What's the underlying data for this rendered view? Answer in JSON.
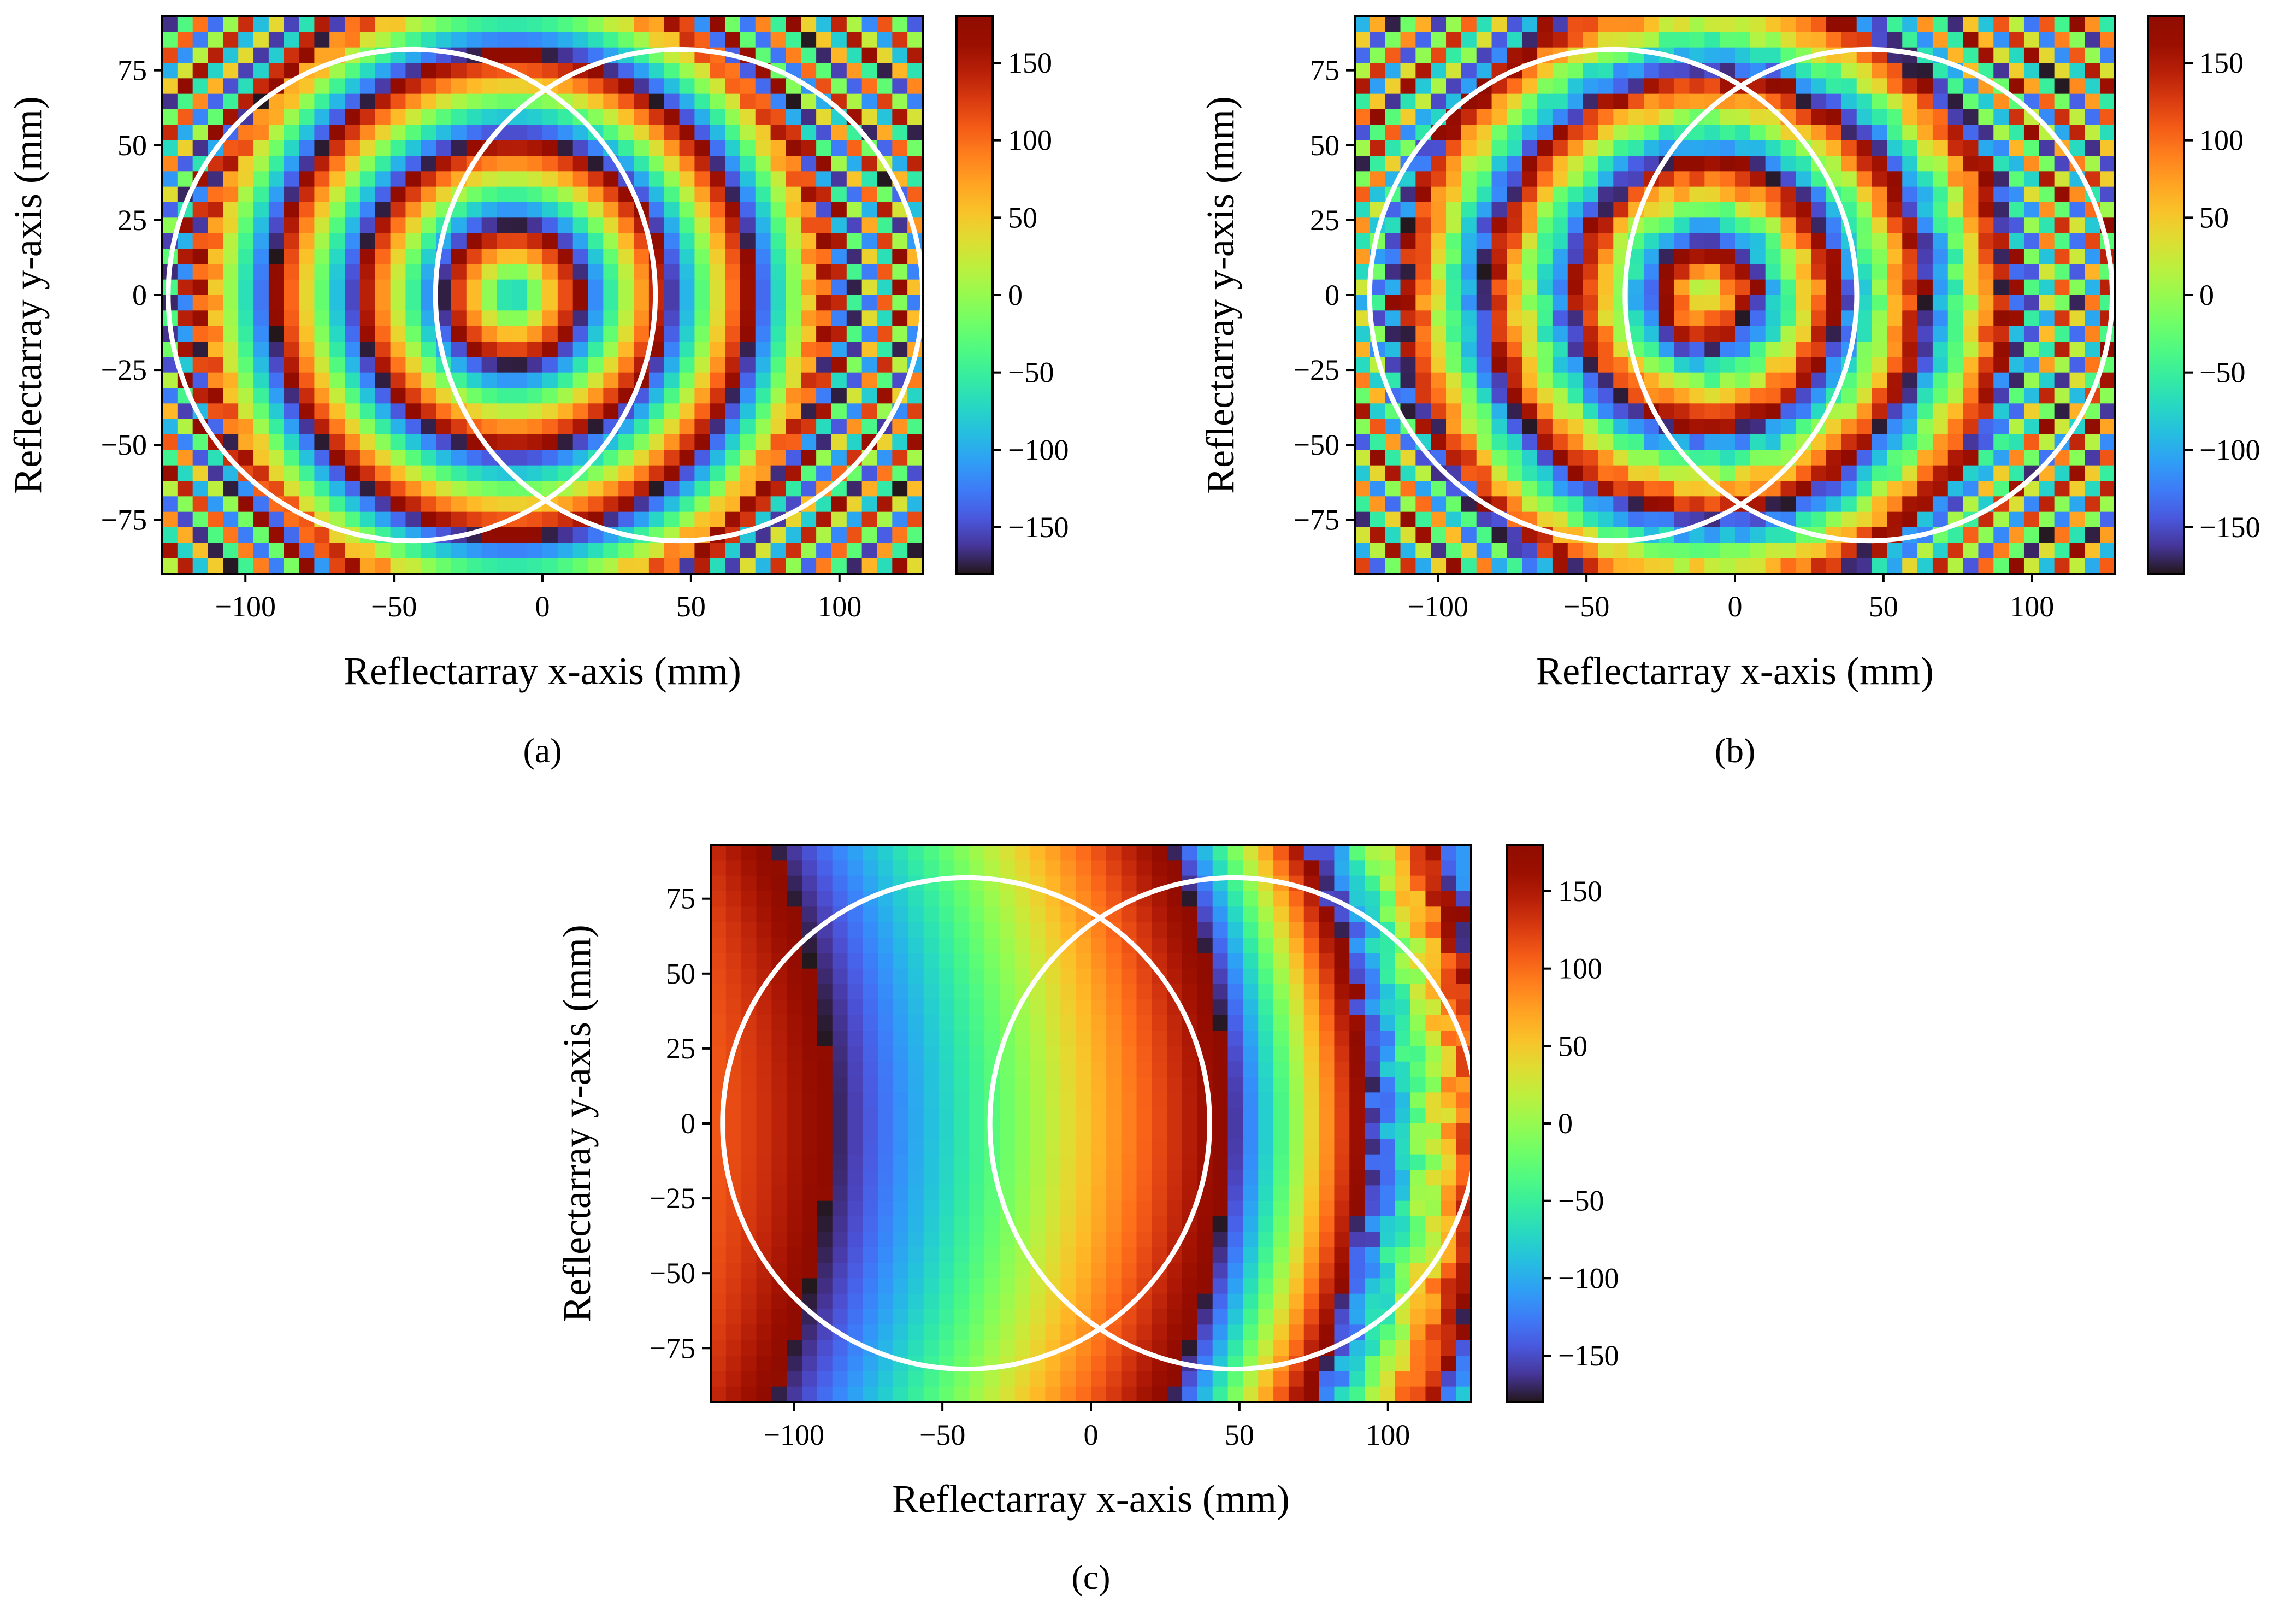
{
  "figure": {
    "panels": [
      {
        "caption": "(a)"
      },
      {
        "caption": "(b)"
      },
      {
        "caption": "(c)"
      }
    ]
  },
  "chart_data": [
    {
      "type": "heatmap",
      "id": "a",
      "caption": "(a)",
      "xlabel": "Reflectarray x-axis (mm)",
      "ylabel": "Reflectarray y-axis (mm)",
      "xlim": [
        -128,
        128
      ],
      "ylim": [
        -93,
        93
      ],
      "xticks": [
        -100,
        -50,
        0,
        50,
        100
      ],
      "xtick_labels": [
        "−100",
        "−50",
        "0",
        "50",
        "100"
      ],
      "yticks": [
        -75,
        -50,
        -25,
        0,
        25,
        50,
        75
      ],
      "ytick_labels": [
        "−75",
        "−50",
        "−25",
        "0",
        "25",
        "50",
        "75"
      ],
      "grid": {
        "nx": 50,
        "ny": 36
      },
      "colorbar": {
        "vmin": -180,
        "vmax": 180,
        "ticks": [
          -150,
          -100,
          -50,
          0,
          50,
          100,
          150
        ],
        "tick_labels": [
          "−150",
          "−100",
          "−50",
          "0",
          "50",
          "100",
          "150"
        ],
        "colormap": "turbo"
      },
      "phase_model": {
        "kind": "radial",
        "center": [
          -10,
          0
        ],
        "radial_rate_deg_per_mm": 12.5,
        "phase_at_center_deg": -108,
        "extra_noise_deg": 0
      },
      "circles": [
        {
          "cx": -44,
          "cy": 0,
          "r": 82
        },
        {
          "cx": 46,
          "cy": 0,
          "r": 82
        }
      ],
      "circle_color": "#ffffff"
    },
    {
      "type": "heatmap",
      "id": "b",
      "caption": "(b)",
      "xlabel": "Reflectarray x-axis (mm)",
      "ylabel": "Reflectarray y-axis (mm)",
      "xlim": [
        -128,
        128
      ],
      "ylim": [
        -93,
        93
      ],
      "xticks": [
        -100,
        -50,
        0,
        50,
        100
      ],
      "xtick_labels": [
        "−100",
        "−50",
        "0",
        "50",
        "100"
      ],
      "yticks": [
        -75,
        -50,
        -25,
        0,
        25,
        50,
        75
      ],
      "ytick_labels": [
        "−75",
        "−50",
        "−25",
        "0",
        "25",
        "50",
        "75"
      ],
      "grid": {
        "nx": 50,
        "ny": 36
      },
      "colorbar": {
        "vmin": -180,
        "vmax": 180,
        "ticks": [
          -150,
          -100,
          -50,
          0,
          50,
          100,
          150
        ],
        "tick_labels": [
          "−150",
          "−100",
          "−50",
          "0",
          "50",
          "100",
          "150"
        ],
        "colormap": "turbo"
      },
      "phase_model": {
        "kind": "radial",
        "center": [
          -10,
          0
        ],
        "radial_rate_deg_per_mm": 12.5,
        "phase_at_center_deg": -20,
        "extra_noise_deg": 25
      },
      "circles": [
        {
          "cx": -41,
          "cy": 0,
          "r": 82
        },
        {
          "cx": 45,
          "cy": 0,
          "r": 82
        }
      ],
      "circle_color": "#ffffff"
    },
    {
      "type": "heatmap",
      "id": "c",
      "caption": "(c)",
      "xlabel": "Reflectarray x-axis (mm)",
      "ylabel": "Reflectarray y-axis (mm)",
      "xlim": [
        -128,
        128
      ],
      "ylim": [
        -93,
        93
      ],
      "xticks": [
        -100,
        -50,
        0,
        50,
        100
      ],
      "xtick_labels": [
        "−100",
        "−50",
        "0",
        "50",
        "100"
      ],
      "yticks": [
        -75,
        -50,
        -25,
        0,
        25,
        50,
        75
      ],
      "ytick_labels": [
        "−75",
        "−50",
        "−25",
        "0",
        "25",
        "50",
        "75"
      ],
      "grid": {
        "nx": 50,
        "ny": 36
      },
      "colorbar": {
        "vmin": -180,
        "vmax": 180,
        "ticks": [
          -150,
          -100,
          -50,
          0,
          50,
          100,
          150
        ],
        "tick_labels": [
          "−150",
          "−100",
          "−50",
          "0",
          "50",
          "100",
          "150"
        ],
        "colormap": "turbo"
      },
      "phase_model": {
        "kind": "bands",
        "x_wrap_points": [
          -88,
          46,
          92
        ],
        "curvature_mm_at_edge": 20,
        "x_end": 128,
        "left_phase_deg": 50,
        "left_edge_deg": 110
      },
      "circles": [
        {
          "cx": -42,
          "cy": 0,
          "r": 82
        },
        {
          "cx": 48,
          "cy": 0,
          "r": 82
        }
      ],
      "circle_color": "#ffffff"
    }
  ]
}
